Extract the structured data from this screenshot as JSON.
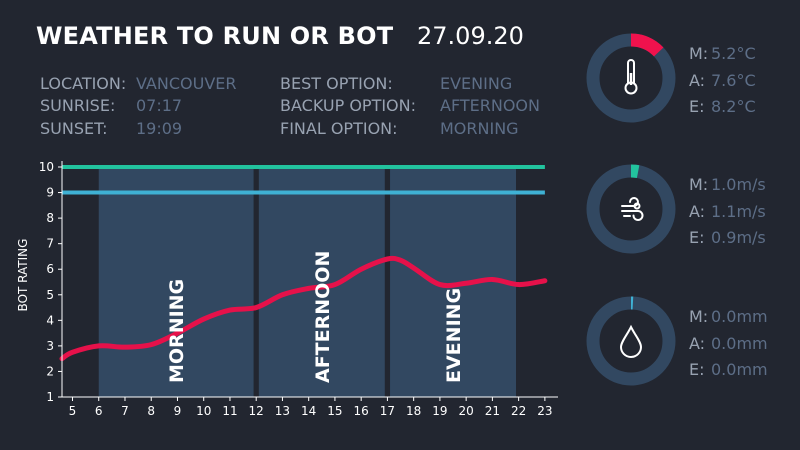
{
  "header": {
    "title": "WEATHER TO RUN OR BOT",
    "date": "27.09.20"
  },
  "info_left": [
    {
      "label": "LOCATION:",
      "value": "VANCOUVER"
    },
    {
      "label": "SUNRISE:",
      "value": "07:17"
    },
    {
      "label": "SUNSET:",
      "value": "19:09"
    }
  ],
  "info_right": [
    {
      "label": "BEST OPTION:",
      "value": "EVENING"
    },
    {
      "label": "BACKUP OPTION:",
      "value": "AFTERNOON"
    },
    {
      "label": "FINAL OPTION:",
      "value": "MORNING"
    }
  ],
  "colors": {
    "background": "#222630",
    "band": "#324861",
    "curve": "#e6114a",
    "line_10": "#22c39e",
    "line_9": "#3fb1d4",
    "gauge_track": "#324861",
    "temp_accent": "#f0124d",
    "wind_accent": "#22c39e",
    "rain_accent": "#3fb1d4"
  },
  "gauges": [
    {
      "icon": "thermometer-icon",
      "accent": "#f0124d",
      "fraction": 0.13,
      "stats": [
        {
          "label": "M:",
          "value": "5.2°C"
        },
        {
          "label": "A:",
          "value": "7.6°C"
        },
        {
          "label": "E:",
          "value": "8.2°C"
        }
      ]
    },
    {
      "icon": "wind-icon",
      "accent": "#22c39e",
      "fraction": 0.03,
      "stats": [
        {
          "label": "M:",
          "value": "1.0m/s"
        },
        {
          "label": "A:",
          "value": "1.1m/s"
        },
        {
          "label": "E:",
          "value": "0.9m/s"
        }
      ]
    },
    {
      "icon": "raindrop-icon",
      "accent": "#3fb1d4",
      "fraction": 0.008,
      "stats": [
        {
          "label": "M:",
          "value": "0.0mm"
        },
        {
          "label": "A:",
          "value": "0.0mm"
        },
        {
          "label": "E:",
          "value": "0.0mm"
        }
      ]
    }
  ],
  "chart_data": {
    "type": "line",
    "ylabel": "BOT RATING",
    "xlim": [
      4.6,
      23.5
    ],
    "ylim": [
      1,
      10
    ],
    "xticks": [
      5,
      6,
      7,
      8,
      9,
      10,
      11,
      12,
      13,
      14,
      15,
      16,
      17,
      18,
      19,
      20,
      21,
      22,
      23
    ],
    "yticks": [
      1,
      2,
      3,
      4,
      5,
      6,
      7,
      8,
      9,
      10
    ],
    "bands": [
      {
        "label": "MORNING",
        "start": 6,
        "end": 11.9
      },
      {
        "label": "AFTERNOON",
        "start": 12.1,
        "end": 16.9
      },
      {
        "label": "EVENING",
        "start": 17.1,
        "end": 21.9
      }
    ],
    "hlines": [
      {
        "y": 10,
        "color": "#22c39e"
      },
      {
        "y": 9,
        "color": "#3fb1d4"
      }
    ],
    "series": [
      {
        "x": [
          4.6,
          5,
          6,
          7,
          8,
          9,
          10,
          11,
          12,
          13,
          14,
          15,
          16,
          17,
          17.5,
          18,
          19,
          20,
          21,
          22,
          23
        ],
        "y": [
          2.5,
          2.75,
          3.0,
          2.95,
          3.05,
          3.5,
          4.05,
          4.4,
          4.5,
          5.0,
          5.25,
          5.4,
          6.0,
          6.4,
          6.35,
          6.05,
          5.4,
          5.45,
          5.6,
          5.4,
          5.55
        ]
      }
    ]
  }
}
